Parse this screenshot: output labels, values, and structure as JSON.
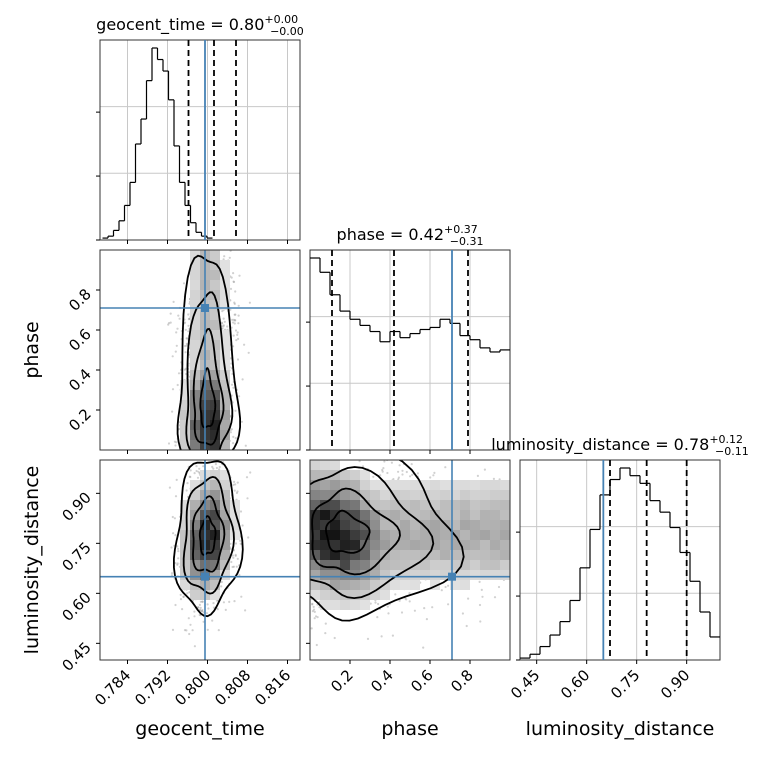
{
  "chart_data": {
    "type": "corner",
    "parameters": [
      "geocent_time",
      "phase",
      "luminosity_distance"
    ],
    "truths": [
      0.7995,
      0.71,
      0.65
    ],
    "truth_color": "#4682b4",
    "hist_color": "#000000",
    "ranges": [
      [
        0.7785,
        0.8185
      ],
      [
        0.0,
        1.0
      ],
      [
        0.4,
        1.0
      ]
    ],
    "ticks": [
      [
        0.784,
        0.792,
        0.8,
        0.808,
        0.816
      ],
      [
        0.2,
        0.4,
        0.6,
        0.8
      ],
      [
        0.45,
        0.6,
        0.75,
        0.9
      ]
    ],
    "tick_labels": [
      [
        "0.784",
        "0.792",
        "0.800",
        "0.808",
        "0.816"
      ],
      [
        "0.2",
        "0.4",
        "0.6",
        "0.8"
      ],
      [
        "0.45",
        "0.60",
        "0.75",
        "0.90"
      ]
    ],
    "titles": [
      {
        "name": "geocent_time",
        "median": "0.80",
        "plus": "+0.00",
        "minus": "−0.00"
      },
      {
        "name": "phase",
        "median": "0.42",
        "plus": "+0.37",
        "minus": "−0.31"
      },
      {
        "name": "luminosity_distance",
        "median": "0.78",
        "plus": "+0.12",
        "minus": "−0.11"
      }
    ],
    "quantiles": [
      [
        0.7962,
        0.8013,
        0.8057
      ],
      [
        0.11,
        0.42,
        0.79
      ],
      [
        0.67,
        0.78,
        0.9
      ]
    ],
    "histograms": [
      {
        "param": "geocent_time",
        "bin_edges_start": 0.779,
        "bin_width": 0.0011,
        "counts": [
          1,
          2,
          5,
          10,
          18,
          30,
          50,
          63,
          83,
          100,
          94,
          88,
          73,
          49,
          30,
          18,
          9,
          4,
          2,
          1
        ]
      },
      {
        "param": "phase",
        "bin_edges_start": 0.0,
        "bin_width": 0.05,
        "counts": [
          94,
          87,
          76,
          68,
          64,
          61,
          58,
          53,
          58,
          55,
          57,
          59,
          60,
          64,
          62,
          56,
          54,
          50,
          48,
          49
        ]
      },
      {
        "param": "luminosity_distance",
        "bin_edges_start": 0.4,
        "bin_width": 0.03,
        "counts": [
          1,
          3,
          7,
          13,
          20,
          31,
          48,
          68,
          86,
          94,
          100,
          96,
          92,
          83,
          77,
          69,
          56,
          41,
          25,
          12
        ]
      }
    ],
    "density_2d": [
      {
        "x": "geocent_time",
        "y": "phase",
        "mean": [
          0.8,
          0.45
        ],
        "sd": [
          0.0026,
          0.35
        ],
        "rho": 0.0
      },
      {
        "x": "geocent_time",
        "y": "luminosity_distance",
        "mean": [
          0.8,
          0.77
        ],
        "sd": [
          0.0028,
          0.1
        ],
        "rho": 0.2
      },
      {
        "x": "phase",
        "y": "luminosity_distance",
        "mean": [
          0.42,
          0.78
        ],
        "sd": [
          0.3,
          0.11
        ],
        "rho": -0.2
      }
    ],
    "grid": true,
    "xlabel": "",
    "ylabel": ""
  }
}
